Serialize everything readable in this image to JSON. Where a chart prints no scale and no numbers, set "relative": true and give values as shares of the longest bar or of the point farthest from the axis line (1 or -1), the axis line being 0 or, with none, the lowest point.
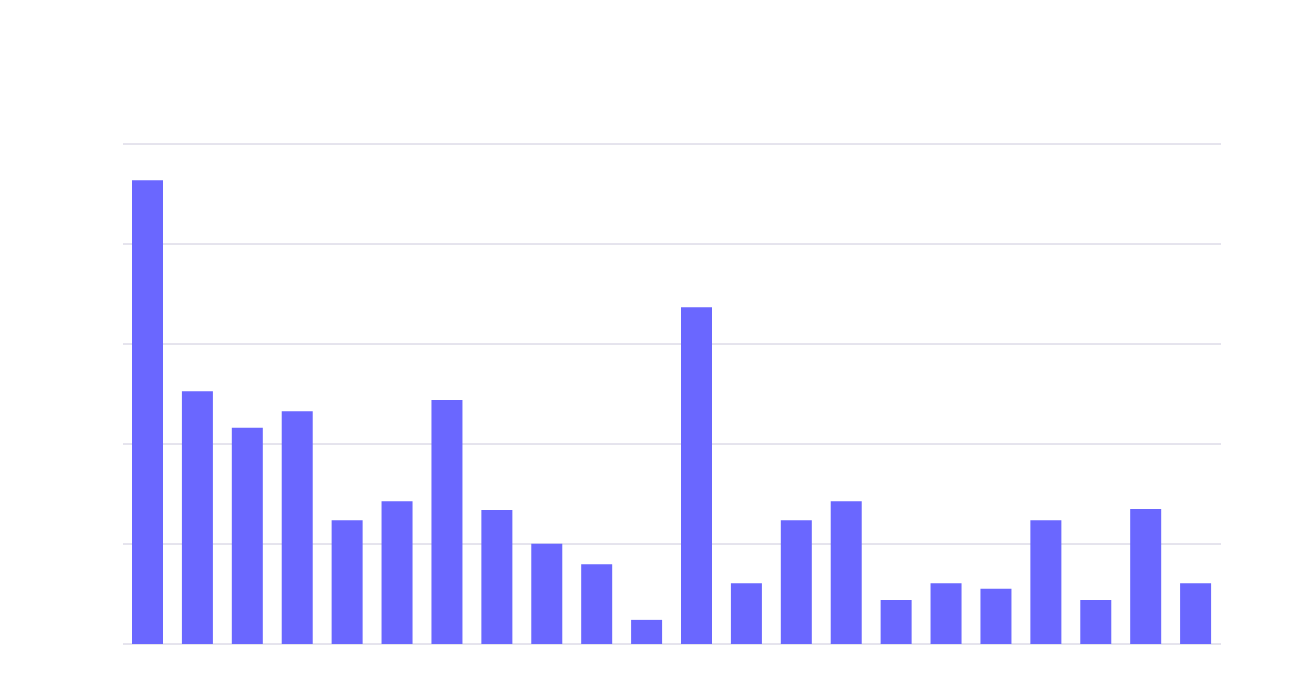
{
  "chart_data": {
    "type": "bar",
    "relative": true,
    "grid": "y",
    "color": "#6a67ff",
    "categories": [
      null,
      null,
      null,
      null,
      null,
      null,
      null,
      null,
      null,
      null,
      null,
      null,
      null,
      null,
      null,
      null,
      null,
      null,
      null,
      null,
      null,
      null
    ],
    "values": [
      1,
      0.545,
      0.466,
      0.502,
      0.267,
      0.308,
      0.526,
      0.289,
      0.216,
      0.172,
      0.052,
      0.726,
      0.131,
      0.267,
      0.308,
      0.095,
      0.131,
      0.119,
      0.267,
      0.095,
      0.291,
      0.131
    ]
  }
}
